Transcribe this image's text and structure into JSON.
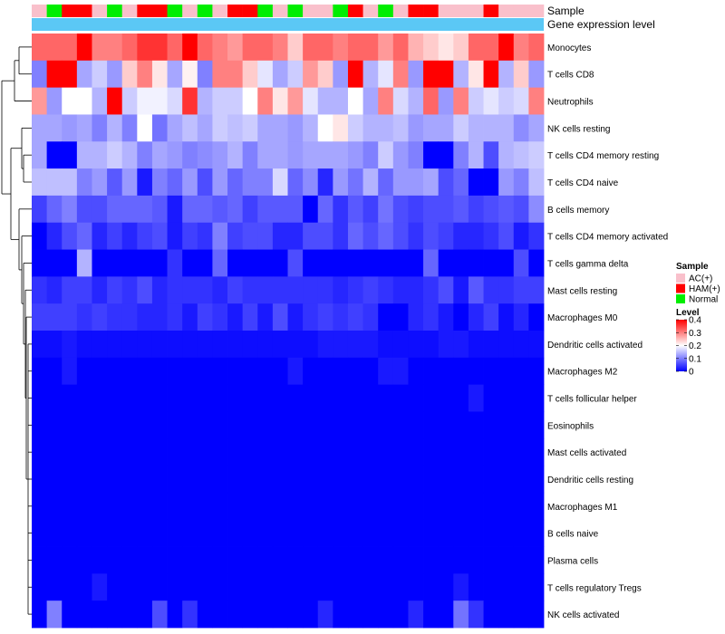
{
  "chart_data": {
    "type": "heatmap",
    "title": "",
    "annotation_titles": [
      "Sample",
      "Gene expression level"
    ],
    "sample_groups": [
      "AC(+)",
      "HAM(+)",
      "Normal"
    ],
    "sample_group_colors": {
      "AC(+)": "#f9c0cb",
      "HAM(+)": "#ff0000",
      "Normal": "#00ee00"
    },
    "gene_expression_level_color": "#5bc8f5",
    "sample_annotation": [
      "AC(+)",
      "Normal",
      "HAM(+)",
      "HAM(+)",
      "AC(+)",
      "Normal",
      "AC(+)",
      "HAM(+)",
      "HAM(+)",
      "Normal",
      "AC(+)",
      "Normal",
      "AC(+)",
      "HAM(+)",
      "HAM(+)",
      "Normal",
      "AC(+)",
      "Normal",
      "AC(+)",
      "AC(+)",
      "Normal",
      "HAM(+)",
      "AC(+)",
      "Normal",
      "AC(+)",
      "HAM(+)",
      "HAM(+)",
      "AC(+)",
      "AC(+)",
      "AC(+)",
      "HAM(+)",
      "AC(+)",
      "AC(+)",
      "AC(+)"
    ],
    "rows": [
      "Monocytes",
      "T cells CD8",
      "Neutrophils",
      "NK cells resting",
      "T cells CD4 memory resting",
      "T cells CD4 naive",
      "B cells memory",
      "T cells CD4 memory activated",
      "T cells gamma delta",
      "Mast cells resting",
      "Macrophages M0",
      "Dendritic cells activated",
      "Macrophages M2",
      "T cells follicular helper",
      "Eosinophils",
      "Mast cells activated",
      "Dendritic cells resting",
      "Macrophages M1",
      "B cells naive",
      "Plasma cells",
      "T cells regulatory  Tregs",
      "NK cells activated"
    ],
    "values": [
      [
        0.32,
        0.32,
        0.32,
        0.4,
        0.3,
        0.3,
        0.32,
        0.36,
        0.36,
        0.32,
        0.4,
        0.32,
        0.3,
        0.28,
        0.32,
        0.32,
        0.3,
        0.24,
        0.32,
        0.32,
        0.3,
        0.32,
        0.32,
        0.28,
        0.32,
        0.26,
        0.24,
        0.22,
        0.24,
        0.32,
        0.32,
        0.4,
        0.3,
        0.32
      ],
      [
        0.1,
        0.4,
        0.4,
        0.13,
        0.16,
        0.12,
        0.24,
        0.3,
        0.22,
        0.13,
        0.21,
        0.1,
        0.3,
        0.3,
        0.24,
        0.18,
        0.13,
        0.16,
        0.28,
        0.24,
        0.12,
        0.4,
        0.14,
        0.18,
        0.3,
        0.12,
        0.4,
        0.4,
        0.14,
        0.22,
        0.4,
        0.14,
        0.24,
        0.12
      ],
      [
        0.28,
        0.12,
        0.2,
        0.2,
        0.14,
        0.4,
        0.16,
        0.19,
        0.19,
        0.17,
        0.36,
        0.14,
        0.16,
        0.16,
        0.2,
        0.3,
        0.22,
        0.28,
        0.18,
        0.14,
        0.14,
        0.2,
        0.13,
        0.3,
        0.17,
        0.14,
        0.32,
        0.12,
        0.3,
        0.16,
        0.18,
        0.16,
        0.17,
        0.3
      ],
      [
        0.13,
        0.13,
        0.12,
        0.13,
        0.1,
        0.14,
        0.1,
        0.2,
        0.09,
        0.13,
        0.15,
        0.13,
        0.16,
        0.15,
        0.16,
        0.13,
        0.13,
        0.12,
        0.14,
        0.2,
        0.22,
        0.16,
        0.14,
        0.14,
        0.15,
        0.12,
        0.13,
        0.13,
        0.16,
        0.14,
        0.14,
        0.14,
        0.11,
        0.13
      ],
      [
        0.13,
        0.0,
        0.0,
        0.14,
        0.14,
        0.16,
        0.14,
        0.1,
        0.13,
        0.12,
        0.1,
        0.11,
        0.12,
        0.14,
        0.1,
        0.13,
        0.13,
        0.12,
        0.13,
        0.13,
        0.13,
        0.12,
        0.1,
        0.16,
        0.12,
        0.1,
        0.0,
        0.0,
        0.1,
        0.14,
        0.06,
        0.14,
        0.15,
        0.16
      ],
      [
        0.15,
        0.15,
        0.15,
        0.1,
        0.12,
        0.07,
        0.12,
        0.02,
        0.1,
        0.08,
        0.12,
        0.06,
        0.12,
        0.08,
        0.1,
        0.1,
        0.17,
        0.08,
        0.11,
        0.03,
        0.12,
        0.09,
        0.14,
        0.08,
        0.12,
        0.12,
        0.13,
        0.06,
        0.08,
        0.0,
        0.0,
        0.12,
        0.1,
        0.15
      ],
      [
        0.05,
        0.08,
        0.1,
        0.06,
        0.06,
        0.08,
        0.08,
        0.08,
        0.07,
        0.02,
        0.08,
        0.08,
        0.07,
        0.08,
        0.05,
        0.07,
        0.07,
        0.07,
        0.0,
        0.08,
        0.04,
        0.07,
        0.05,
        0.09,
        0.06,
        0.05,
        0.06,
        0.06,
        0.07,
        0.05,
        0.06,
        0.07,
        0.06,
        0.11
      ],
      [
        0.0,
        0.03,
        0.06,
        0.08,
        0.03,
        0.05,
        0.03,
        0.05,
        0.06,
        0.02,
        0.05,
        0.04,
        0.1,
        0.05,
        0.06,
        0.06,
        0.03,
        0.03,
        0.06,
        0.06,
        0.04,
        0.08,
        0.06,
        0.08,
        0.06,
        0.04,
        0.06,
        0.05,
        0.03,
        0.03,
        0.04,
        0.06,
        0.02,
        0.04
      ],
      [
        0.0,
        0.0,
        0.0,
        0.14,
        0.0,
        0.0,
        0.0,
        0.0,
        0.0,
        0.04,
        0.0,
        0.0,
        0.08,
        0.0,
        0.0,
        0.0,
        0.0,
        0.06,
        0.0,
        0.0,
        0.0,
        0.0,
        0.0,
        0.0,
        0.0,
        0.0,
        0.08,
        0.0,
        0.0,
        0.0,
        0.0,
        0.0,
        0.06,
        0.0
      ],
      [
        0.04,
        0.03,
        0.05,
        0.05,
        0.03,
        0.05,
        0.04,
        0.06,
        0.03,
        0.04,
        0.04,
        0.04,
        0.03,
        0.05,
        0.04,
        0.04,
        0.04,
        0.04,
        0.04,
        0.04,
        0.03,
        0.04,
        0.05,
        0.04,
        0.03,
        0.03,
        0.04,
        0.06,
        0.02,
        0.07,
        0.04,
        0.04,
        0.05,
        0.05
      ],
      [
        0.05,
        0.05,
        0.05,
        0.04,
        0.05,
        0.04,
        0.04,
        0.03,
        0.03,
        0.04,
        0.02,
        0.05,
        0.04,
        0.02,
        0.05,
        0.02,
        0.06,
        0.02,
        0.04,
        0.05,
        0.04,
        0.05,
        0.04,
        0.0,
        0.0,
        0.03,
        0.04,
        0.02,
        0.0,
        0.03,
        0.05,
        0.01,
        0.03,
        0.0
      ],
      [
        0.01,
        0.01,
        0.02,
        0.01,
        0.01,
        0.01,
        0.01,
        0.01,
        0.01,
        0.01,
        0.01,
        0.01,
        0.01,
        0.01,
        0.01,
        0.01,
        0.01,
        0.01,
        0.01,
        0.02,
        0.02,
        0.02,
        0.02,
        0.01,
        0.01,
        0.01,
        0.01,
        0.02,
        0.02,
        0.01,
        0.01,
        0.01,
        0.01,
        0.01
      ],
      [
        0.0,
        0.0,
        0.02,
        0.0,
        0.0,
        0.0,
        0.0,
        0.0,
        0.0,
        0.0,
        0.0,
        0.0,
        0.0,
        0.0,
        0.0,
        0.0,
        0.0,
        0.02,
        0.0,
        0.0,
        0.0,
        0.0,
        0.0,
        0.02,
        0.02,
        0.0,
        0.0,
        0.0,
        0.0,
        0.0,
        0.0,
        0.0,
        0.0,
        0.0
      ],
      [
        0.0,
        0.0,
        0.0,
        0.0,
        0.0,
        0.0,
        0.0,
        0.0,
        0.0,
        0.0,
        0.0,
        0.0,
        0.0,
        0.0,
        0.0,
        0.0,
        0.0,
        0.0,
        0.0,
        0.0,
        0.0,
        0.0,
        0.0,
        0.0,
        0.0,
        0.0,
        0.0,
        0.0,
        0.0,
        0.02,
        0.0,
        0.0,
        0.0,
        0.0
      ],
      [
        0,
        0,
        0,
        0,
        0,
        0,
        0,
        0,
        0,
        0,
        0,
        0,
        0,
        0,
        0,
        0,
        0,
        0,
        0,
        0,
        0,
        0,
        0,
        0,
        0,
        0,
        0,
        0,
        0,
        0,
        0,
        0,
        0,
        0
      ],
      [
        0,
        0,
        0,
        0,
        0,
        0,
        0,
        0,
        0,
        0,
        0,
        0,
        0,
        0,
        0,
        0,
        0,
        0,
        0,
        0,
        0,
        0,
        0,
        0,
        0,
        0,
        0,
        0,
        0,
        0,
        0,
        0,
        0,
        0
      ],
      [
        0,
        0,
        0,
        0,
        0,
        0,
        0,
        0,
        0,
        0,
        0,
        0,
        0,
        0,
        0,
        0,
        0,
        0,
        0,
        0,
        0,
        0,
        0,
        0,
        0,
        0,
        0,
        0,
        0,
        0,
        0,
        0,
        0,
        0
      ],
      [
        0,
        0,
        0,
        0,
        0,
        0,
        0,
        0,
        0,
        0,
        0,
        0,
        0,
        0,
        0,
        0,
        0,
        0,
        0,
        0,
        0,
        0,
        0,
        0,
        0,
        0,
        0,
        0,
        0,
        0,
        0,
        0,
        0,
        0
      ],
      [
        0,
        0,
        0,
        0,
        0,
        0,
        0,
        0,
        0,
        0,
        0,
        0,
        0,
        0,
        0,
        0,
        0,
        0,
        0,
        0,
        0,
        0,
        0,
        0,
        0,
        0,
        0,
        0,
        0,
        0,
        0,
        0,
        0,
        0
      ],
      [
        0,
        0,
        0,
        0,
        0,
        0,
        0,
        0,
        0,
        0,
        0,
        0,
        0,
        0,
        0,
        0,
        0,
        0,
        0,
        0,
        0,
        0,
        0,
        0,
        0,
        0,
        0,
        0,
        0,
        0,
        0,
        0,
        0,
        0
      ],
      [
        0.0,
        0.0,
        0.0,
        0.0,
        0.02,
        0.0,
        0.0,
        0.0,
        0.0,
        0.0,
        0.0,
        0.0,
        0.0,
        0.0,
        0.0,
        0.0,
        0.0,
        0.0,
        0.0,
        0.0,
        0.0,
        0.0,
        0.0,
        0.0,
        0.0,
        0.0,
        0.0,
        0.0,
        0.02,
        0.0,
        0.0,
        0.0,
        0.0,
        0.0
      ],
      [
        0.0,
        0.1,
        0.0,
        0.0,
        0.0,
        0.0,
        0.0,
        0.0,
        0.06,
        0.0,
        0.04,
        0.0,
        0.0,
        0.0,
        0.0,
        0.0,
        0.0,
        0.0,
        0.0,
        0.03,
        0.0,
        0.0,
        0.0,
        0.0,
        0.0,
        0.03,
        0.0,
        0.0,
        0.09,
        0.04,
        0.0,
        0.0,
        0.0,
        0.0
      ]
    ],
    "scale": {
      "min": 0,
      "max": 0.4,
      "colors": [
        "#0000ff",
        "#ffffff",
        "#ff0000"
      ]
    },
    "legend": {
      "sample_title": "Sample",
      "sample_items": [
        {
          "label": "AC(+)",
          "color": "#f9c0cb"
        },
        {
          "label": "HAM(+)",
          "color": "#ff0000"
        },
        {
          "label": "Normal",
          "color": "#00ee00"
        }
      ],
      "level_title": "Level",
      "level_ticks": [
        "0.4",
        "0.3",
        "0.2",
        "0.1",
        "0"
      ],
      "level_tick_values": [
        0.4,
        0.3,
        0.2,
        0.1,
        0
      ],
      "placement": "right"
    },
    "row_dendrogram": true
  }
}
